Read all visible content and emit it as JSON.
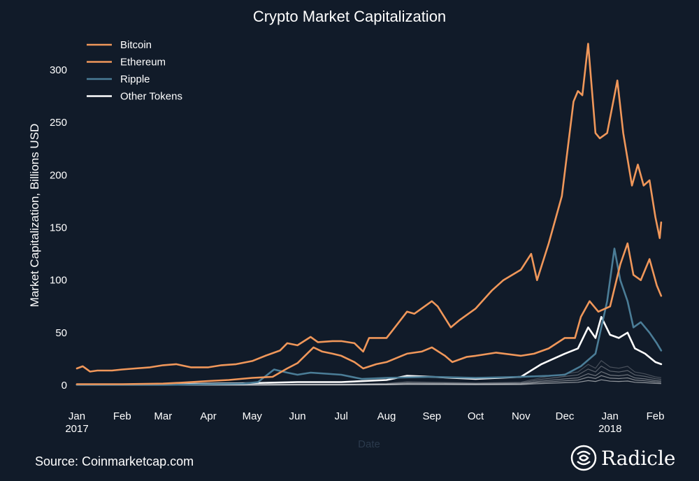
{
  "chart_data": {
    "type": "line",
    "title": "Crypto Market Capitalization",
    "xlabel": "Date",
    "ylabel": "Market Capitalization, Billions USD",
    "ylim": [
      0,
      330
    ],
    "yticks": [
      0,
      50,
      100,
      150,
      200,
      250,
      300
    ],
    "xlim": [
      "2017-01-01",
      "2018-02-06"
    ],
    "xticks": [
      {
        "date": "2017-01-01",
        "label": "Jan",
        "sublabel": "2017"
      },
      {
        "date": "2017-02-01",
        "label": "Feb",
        "sublabel": ""
      },
      {
        "date": "2017-03-01",
        "label": "Mar",
        "sublabel": ""
      },
      {
        "date": "2017-04-01",
        "label": "Apr",
        "sublabel": ""
      },
      {
        "date": "2017-05-01",
        "label": "May",
        "sublabel": ""
      },
      {
        "date": "2017-06-01",
        "label": "Jun",
        "sublabel": ""
      },
      {
        "date": "2017-07-01",
        "label": "Jul",
        "sublabel": ""
      },
      {
        "date": "2017-08-01",
        "label": "Aug",
        "sublabel": ""
      },
      {
        "date": "2017-09-01",
        "label": "Sep",
        "sublabel": ""
      },
      {
        "date": "2017-10-01",
        "label": "Oct",
        "sublabel": ""
      },
      {
        "date": "2017-11-01",
        "label": "Nov",
        "sublabel": ""
      },
      {
        "date": "2017-12-01",
        "label": "Dec",
        "sublabel": ""
      },
      {
        "date": "2018-01-01",
        "label": "Jan",
        "sublabel": "2018"
      },
      {
        "date": "2018-02-01",
        "label": "Feb",
        "sublabel": ""
      }
    ],
    "legend": "top-left",
    "grid": false,
    "series": [
      {
        "name": "Bitcoin",
        "color": "#f0975a",
        "points": [
          [
            "2017-01-01",
            16
          ],
          [
            "2017-01-05",
            18
          ],
          [
            "2017-01-10",
            13
          ],
          [
            "2017-01-15",
            14
          ],
          [
            "2017-01-25",
            14
          ],
          [
            "2017-02-01",
            15
          ],
          [
            "2017-02-10",
            16
          ],
          [
            "2017-02-20",
            17
          ],
          [
            "2017-03-01",
            19
          ],
          [
            "2017-03-10",
            20
          ],
          [
            "2017-03-20",
            17
          ],
          [
            "2017-04-01",
            17
          ],
          [
            "2017-04-10",
            19
          ],
          [
            "2017-04-20",
            20
          ],
          [
            "2017-05-01",
            23
          ],
          [
            "2017-05-10",
            28
          ],
          [
            "2017-05-20",
            33
          ],
          [
            "2017-05-25",
            40
          ],
          [
            "2017-06-01",
            38
          ],
          [
            "2017-06-10",
            46
          ],
          [
            "2017-06-15",
            41
          ],
          [
            "2017-06-25",
            42
          ],
          [
            "2017-07-01",
            42
          ],
          [
            "2017-07-10",
            40
          ],
          [
            "2017-07-16",
            32
          ],
          [
            "2017-07-20",
            45
          ],
          [
            "2017-08-01",
            45
          ],
          [
            "2017-08-05",
            52
          ],
          [
            "2017-08-15",
            70
          ],
          [
            "2017-08-20",
            68
          ],
          [
            "2017-09-01",
            80
          ],
          [
            "2017-09-05",
            75
          ],
          [
            "2017-09-14",
            55
          ],
          [
            "2017-09-20",
            62
          ],
          [
            "2017-10-01",
            73
          ],
          [
            "2017-10-12",
            90
          ],
          [
            "2017-10-20",
            100
          ],
          [
            "2017-11-01",
            110
          ],
          [
            "2017-11-08",
            125
          ],
          [
            "2017-11-12",
            100
          ],
          [
            "2017-11-20",
            135
          ],
          [
            "2017-11-29",
            180
          ],
          [
            "2017-12-07",
            270
          ],
          [
            "2017-12-10",
            280
          ],
          [
            "2017-12-13",
            276
          ],
          [
            "2017-12-17",
            325
          ],
          [
            "2017-12-22",
            240
          ],
          [
            "2017-12-25",
            235
          ],
          [
            "2017-12-30",
            240
          ],
          [
            "2018-01-06",
            290
          ],
          [
            "2018-01-10",
            240
          ],
          [
            "2018-01-16",
            190
          ],
          [
            "2018-01-20",
            210
          ],
          [
            "2018-01-24",
            190
          ],
          [
            "2018-01-28",
            195
          ],
          [
            "2018-02-01",
            160
          ],
          [
            "2018-02-04",
            140
          ],
          [
            "2018-02-05",
            155
          ]
        ]
      },
      {
        "name": "Ethereum",
        "color": "#f0975a",
        "points": [
          [
            "2017-01-01",
            1
          ],
          [
            "2017-02-01",
            1
          ],
          [
            "2017-03-01",
            1.5
          ],
          [
            "2017-03-15",
            2.5
          ],
          [
            "2017-04-01",
            4
          ],
          [
            "2017-04-15",
            5
          ],
          [
            "2017-05-01",
            7
          ],
          [
            "2017-05-15",
            8
          ],
          [
            "2017-05-25",
            16
          ],
          [
            "2017-06-01",
            21
          ],
          [
            "2017-06-12",
            36
          ],
          [
            "2017-06-18",
            32
          ],
          [
            "2017-06-25",
            30
          ],
          [
            "2017-07-01",
            28
          ],
          [
            "2017-07-10",
            22
          ],
          [
            "2017-07-16",
            16
          ],
          [
            "2017-07-25",
            20
          ],
          [
            "2017-08-01",
            22
          ],
          [
            "2017-08-15",
            30
          ],
          [
            "2017-08-25",
            32
          ],
          [
            "2017-09-01",
            36
          ],
          [
            "2017-09-10",
            28
          ],
          [
            "2017-09-15",
            22
          ],
          [
            "2017-09-25",
            27
          ],
          [
            "2017-10-01",
            28
          ],
          [
            "2017-10-15",
            31
          ],
          [
            "2017-11-01",
            28
          ],
          [
            "2017-11-10",
            30
          ],
          [
            "2017-11-20",
            35
          ],
          [
            "2017-12-01",
            45
          ],
          [
            "2017-12-08",
            45
          ],
          [
            "2017-12-12",
            65
          ],
          [
            "2017-12-18",
            80
          ],
          [
            "2017-12-24",
            70
          ],
          [
            "2018-01-01",
            75
          ],
          [
            "2018-01-08",
            115
          ],
          [
            "2018-01-13",
            135
          ],
          [
            "2018-01-17",
            105
          ],
          [
            "2018-01-22",
            100
          ],
          [
            "2018-01-28",
            120
          ],
          [
            "2018-02-02",
            95
          ],
          [
            "2018-02-05",
            85
          ]
        ]
      },
      {
        "name": "Ripple",
        "color": "#4b7d97",
        "points": [
          [
            "2017-01-01",
            0.3
          ],
          [
            "2017-03-01",
            0.3
          ],
          [
            "2017-04-01",
            1
          ],
          [
            "2017-04-25",
            1.5
          ],
          [
            "2017-05-05",
            3
          ],
          [
            "2017-05-16",
            15
          ],
          [
            "2017-05-25",
            12
          ],
          [
            "2017-06-01",
            10
          ],
          [
            "2017-06-10",
            12
          ],
          [
            "2017-07-01",
            10
          ],
          [
            "2017-07-15",
            6
          ],
          [
            "2017-08-01",
            7
          ],
          [
            "2017-09-01",
            8
          ],
          [
            "2017-10-01",
            7
          ],
          [
            "2017-11-01",
            8
          ],
          [
            "2017-11-20",
            9
          ],
          [
            "2017-12-01",
            10
          ],
          [
            "2017-12-12",
            18
          ],
          [
            "2017-12-22",
            30
          ],
          [
            "2017-12-30",
            80
          ],
          [
            "2018-01-04",
            130
          ],
          [
            "2018-01-08",
            100
          ],
          [
            "2018-01-13",
            80
          ],
          [
            "2018-01-17",
            55
          ],
          [
            "2018-01-22",
            60
          ],
          [
            "2018-01-28",
            50
          ],
          [
            "2018-02-02",
            40
          ],
          [
            "2018-02-05",
            33
          ]
        ]
      },
      {
        "name": "Other Tokens",
        "color": "#ffffff",
        "points": [
          [
            "2017-01-01",
            0.5
          ],
          [
            "2017-03-01",
            1
          ],
          [
            "2017-05-01",
            2
          ],
          [
            "2017-06-01",
            3
          ],
          [
            "2017-07-01",
            3
          ],
          [
            "2017-08-01",
            5
          ],
          [
            "2017-08-15",
            9
          ],
          [
            "2017-09-01",
            8
          ],
          [
            "2017-10-01",
            6
          ],
          [
            "2017-11-01",
            8
          ],
          [
            "2017-11-15",
            20
          ],
          [
            "2017-12-01",
            30
          ],
          [
            "2017-12-10",
            35
          ],
          [
            "2017-12-17",
            55
          ],
          [
            "2017-12-22",
            45
          ],
          [
            "2017-12-26",
            65
          ],
          [
            "2018-01-01",
            48
          ],
          [
            "2018-01-07",
            45
          ],
          [
            "2018-01-13",
            50
          ],
          [
            "2018-01-18",
            35
          ],
          [
            "2018-01-25",
            30
          ],
          [
            "2018-02-01",
            22
          ],
          [
            "2018-02-05",
            20
          ]
        ]
      }
    ]
  },
  "footer": {
    "source": "Source: Coinmarketcap.com",
    "brand": "Radicle",
    "brand_icon": "radicle-logo-icon"
  }
}
